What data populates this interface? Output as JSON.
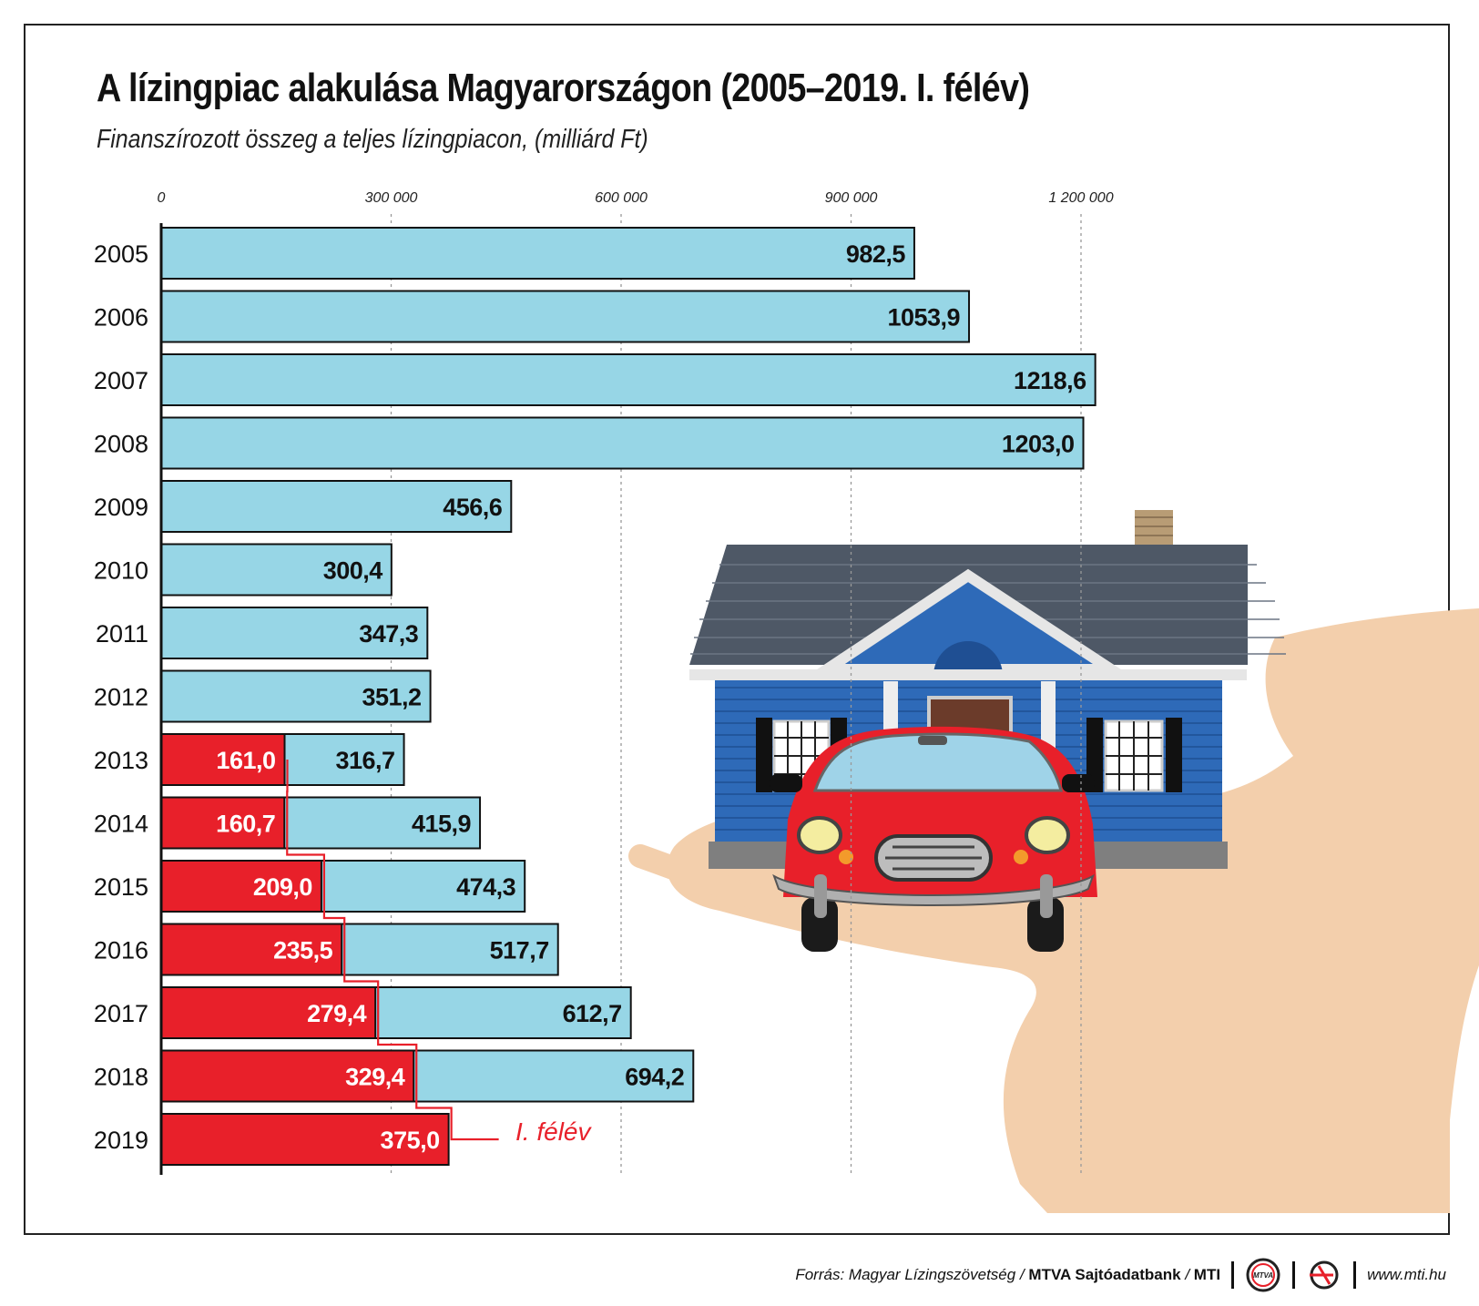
{
  "title": "A lízingpiac alakulása Magyarországon (2005–2019. I. félév)",
  "subtitle": "Finanszírozott összeg a teljes lízingpiacon, (milliárd Ft)",
  "footer": {
    "source_prefix": "Forrás: Magyar Lízingszövetség /",
    "source_bold": "MTVA Sajtóadatbank",
    "source_sep": "/",
    "source_mti": "MTI",
    "mtva_logo_text": "MTVA",
    "website": "www.mti.hu"
  },
  "colors": {
    "full_year_bar": "#97d6e6",
    "half_year_bar": "#e8202a",
    "house_wall": "#2e6ab8",
    "roof": "#4e5866",
    "car": "#e8202a",
    "hand": "#f3cfac"
  },
  "icons": [
    "house-icon",
    "car-icon",
    "hand-icon",
    "mtva-logo-icon",
    "mti-logo-icon"
  ],
  "chart_data": {
    "type": "bar",
    "orientation": "horizontal",
    "stacked_overlay": true,
    "axis_tick_labels": [
      "0",
      "300 000",
      "600 000",
      "900 000",
      "1 200 000"
    ],
    "axis_ticks": [
      0,
      300000,
      600000,
      900000,
      1200000
    ],
    "xlim": [
      0,
      1350000
    ],
    "grid": true,
    "categories": [
      "2005",
      "2006",
      "2007",
      "2008",
      "2009",
      "2010",
      "2011",
      "2012",
      "2013",
      "2014",
      "2015",
      "2016",
      "2017",
      "2018",
      "2019"
    ],
    "series": [
      {
        "values": [
          982.5,
          1053.9,
          1218.6,
          1203.0,
          456.6,
          300.4,
          347.3,
          351.2,
          316.7,
          415.9,
          474.3,
          517.7,
          612.7,
          694.2,
          null
        ],
        "labels": [
          "982,5",
          "1053,9",
          "1218,6",
          "1203,0",
          "456,6",
          "300,4",
          "347,3",
          "351,2",
          "316,7",
          "415,9",
          "474,3",
          "517,7",
          "612,7",
          "694,2",
          ""
        ]
      },
      {
        "name": "I. félév",
        "values": [
          null,
          null,
          null,
          null,
          null,
          null,
          null,
          null,
          161.0,
          160.7,
          209.0,
          235.5,
          279.4,
          329.4,
          375.0
        ],
        "labels": [
          "",
          "",
          "",
          "",
          "",
          "",
          "",
          "",
          "161,0",
          "160,7",
          "209,0",
          "235,5",
          "279,4",
          "329,4",
          "375,0"
        ]
      }
    ],
    "annotation": "I. félév"
  }
}
